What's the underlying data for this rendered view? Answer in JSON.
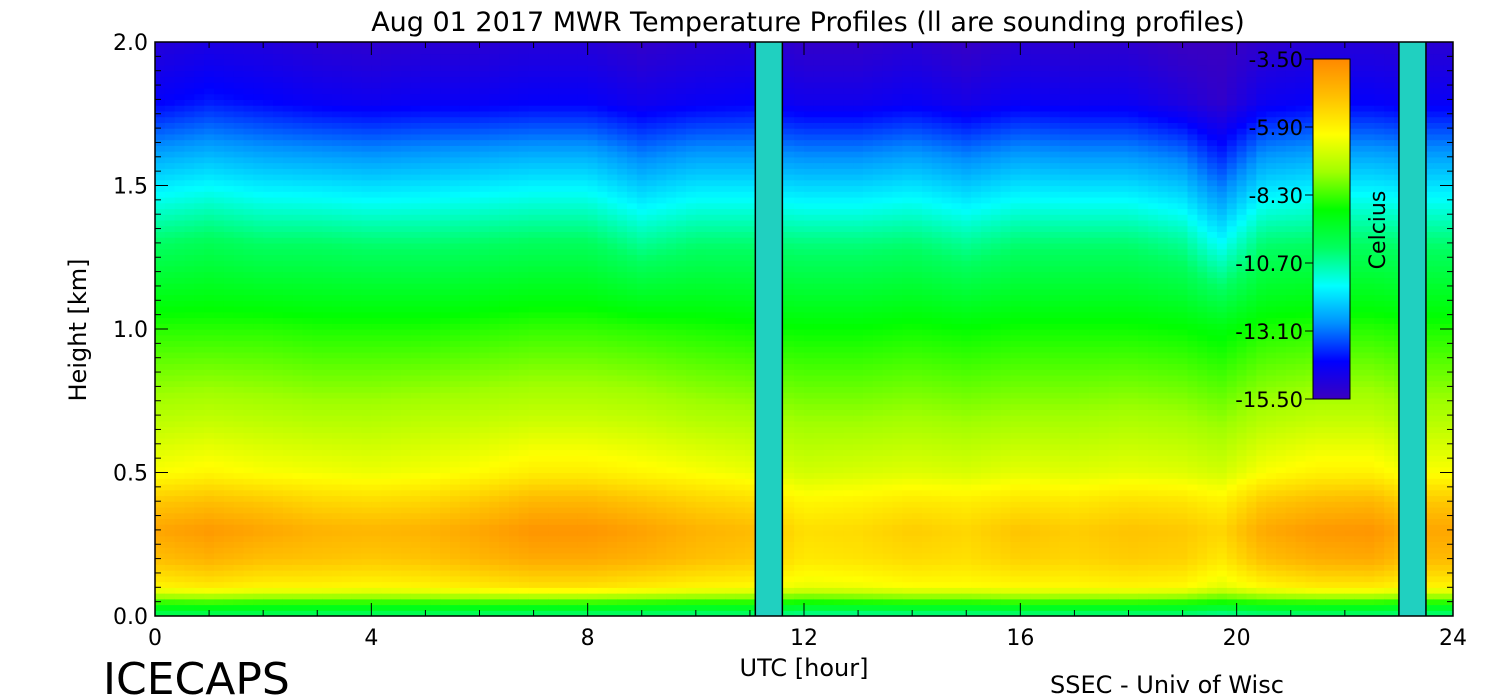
{
  "chart_data": {
    "type": "heatmap",
    "title": "Aug 01 2017 MWR Temperature Profiles (ll are sounding profiles)",
    "xlabel": "UTC [hour]",
    "ylabel": "Height [km]",
    "xlim": [
      0,
      24
    ],
    "ylim": [
      0,
      2.0
    ],
    "x_ticks": [
      0,
      4,
      8,
      12,
      16,
      20,
      24
    ],
    "y_ticks": [
      0.0,
      0.5,
      1.0,
      1.5,
      2.0
    ],
    "x_tick_labels": [
      "0",
      "4",
      "8",
      "12",
      "16",
      "20",
      "24"
    ],
    "y_tick_labels": [
      "0.0",
      "0.5",
      "1.0",
      "1.5",
      "2.0"
    ],
    "colorbar": {
      "label": "Celcius",
      "ticks": [
        -3.5,
        -5.9,
        -8.3,
        -10.7,
        -13.1,
        -15.5
      ],
      "tick_labels": [
        "-3.50",
        "-5.90",
        "-8.30",
        "-10.70",
        "-13.10",
        "-15.50"
      ],
      "range": [
        -15.5,
        -3.5
      ],
      "colors": [
        "#3a00c0",
        "#0000ff",
        "#0090ff",
        "#00ffff",
        "#00ff60",
        "#00ff00",
        "#a0ff00",
        "#ffff00",
        "#ffc000",
        "#ff8800"
      ]
    },
    "sounding_hours": [
      11.1,
      11.6,
      23.0,
      23.5
    ],
    "gap_color": "#20d0c0",
    "profile_hours": [
      0,
      1.0,
      2.0,
      3.0,
      4.0,
      5.0,
      6.0,
      7.0,
      8.0,
      9.0,
      10.0,
      11.0,
      12.0,
      13.0,
      14.0,
      15.0,
      16.0,
      17.0,
      18.0,
      19.0,
      19.7,
      20.5,
      21.5,
      22.5,
      23.0,
      24.0
    ],
    "heights_km": [
      0.0,
      0.05,
      0.1,
      0.2,
      0.3,
      0.4,
      0.5,
      0.7,
      1.0,
      1.3,
      1.6,
      1.8,
      2.0
    ],
    "temperature_c": [
      [
        -10.2,
        -8.4,
        -6.0,
        -4.8,
        -4.2,
        -5.0,
        -6.2,
        -7.2,
        -8.5,
        -10.2,
        -12.5,
        -14.3,
        -15.0
      ],
      [
        -10.2,
        -8.3,
        -5.8,
        -4.5,
        -3.9,
        -4.8,
        -6.0,
        -7.1,
        -8.5,
        -10.0,
        -12.3,
        -14.0,
        -14.8
      ],
      [
        -10.2,
        -8.4,
        -6.0,
        -4.8,
        -4.2,
        -5.0,
        -6.2,
        -7.2,
        -8.5,
        -10.2,
        -12.5,
        -14.2,
        -14.9
      ],
      [
        -10.3,
        -8.4,
        -6.0,
        -4.9,
        -4.5,
        -5.3,
        -6.3,
        -7.3,
        -8.6,
        -10.2,
        -12.6,
        -14.4,
        -15.1
      ],
      [
        -10.3,
        -8.4,
        -6.1,
        -5.0,
        -4.6,
        -5.4,
        -6.4,
        -7.3,
        -8.6,
        -10.3,
        -12.7,
        -14.5,
        -15.2
      ],
      [
        -10.3,
        -8.4,
        -6.0,
        -4.9,
        -4.5,
        -5.3,
        -6.3,
        -7.2,
        -8.6,
        -10.3,
        -12.6,
        -14.4,
        -15.1
      ],
      [
        -10.4,
        -8.3,
        -5.8,
        -4.6,
        -4.2,
        -5.0,
        -6.1,
        -7.1,
        -8.5,
        -10.2,
        -12.5,
        -14.4,
        -15.1
      ],
      [
        -10.5,
        -8.3,
        -5.6,
        -4.3,
        -3.8,
        -4.6,
        -5.8,
        -7.0,
        -8.4,
        -10.1,
        -12.4,
        -14.3,
        -15.0
      ],
      [
        -10.5,
        -8.3,
        -5.6,
        -4.3,
        -3.8,
        -4.6,
        -5.8,
        -7.0,
        -8.4,
        -10.1,
        -12.4,
        -14.3,
        -15.0
      ],
      [
        -10.5,
        -8.4,
        -5.8,
        -4.5,
        -4.1,
        -4.9,
        -6.0,
        -7.1,
        -8.5,
        -10.6,
        -12.9,
        -14.6,
        -15.3
      ],
      [
        -10.6,
        -8.5,
        -6.0,
        -4.8,
        -4.5,
        -5.2,
        -6.2,
        -7.3,
        -8.6,
        -10.3,
        -12.6,
        -14.4,
        -15.1
      ],
      [
        -10.5,
        -8.5,
        -6.1,
        -5.0,
        -4.7,
        -5.4,
        -6.4,
        -7.4,
        -8.7,
        -10.3,
        -12.6,
        -14.3,
        -15.0
      ],
      [
        -10.8,
        -8.7,
        -6.5,
        -5.7,
        -5.5,
        -6.0,
        -6.8,
        -7.6,
        -8.8,
        -10.4,
        -12.8,
        -14.6,
        -15.3
      ],
      [
        -10.8,
        -8.6,
        -6.4,
        -5.6,
        -5.4,
        -5.9,
        -6.7,
        -7.6,
        -8.8,
        -10.4,
        -12.8,
        -14.6,
        -15.3
      ],
      [
        -10.7,
        -8.5,
        -6.2,
        -5.4,
        -5.1,
        -5.7,
        -6.6,
        -7.5,
        -8.7,
        -10.3,
        -12.6,
        -14.4,
        -15.1
      ],
      [
        -10.7,
        -8.5,
        -6.2,
        -5.5,
        -5.3,
        -5.8,
        -6.7,
        -7.6,
        -8.8,
        -10.6,
        -12.9,
        -14.7,
        -15.4
      ],
      [
        -10.6,
        -8.4,
        -6.1,
        -5.2,
        -4.9,
        -5.6,
        -6.5,
        -7.5,
        -8.7,
        -10.3,
        -12.6,
        -14.4,
        -15.1
      ],
      [
        -10.6,
        -8.4,
        -6.1,
        -5.3,
        -5.1,
        -5.7,
        -6.6,
        -7.5,
        -8.7,
        -10.3,
        -12.7,
        -14.5,
        -15.2
      ],
      [
        -10.6,
        -8.4,
        -6.0,
        -5.1,
        -4.9,
        -5.5,
        -6.5,
        -7.4,
        -8.7,
        -10.3,
        -12.7,
        -14.5,
        -15.2
      ],
      [
        -10.6,
        -8.5,
        -6.1,
        -5.2,
        -5.0,
        -5.6,
        -6.6,
        -7.5,
        -8.8,
        -10.6,
        -13.0,
        -14.9,
        -15.5
      ],
      [
        -10.8,
        -8.7,
        -6.6,
        -5.7,
        -5.3,
        -5.9,
        -6.8,
        -7.7,
        -9.0,
        -11.5,
        -13.8,
        -15.3,
        -15.5
      ],
      [
        -10.6,
        -8.5,
        -6.1,
        -4.8,
        -4.3,
        -5.0,
        -6.2,
        -7.3,
        -8.6,
        -10.3,
        -12.7,
        -14.5,
        -15.2
      ],
      [
        -10.5,
        -8.4,
        -5.8,
        -4.4,
        -3.9,
        -4.7,
        -5.9,
        -7.1,
        -8.5,
        -10.2,
        -12.5,
        -14.3,
        -15.0
      ],
      [
        -10.5,
        -8.4,
        -5.8,
        -4.3,
        -3.8,
        -4.6,
        -5.9,
        -7.1,
        -8.5,
        -10.2,
        -12.5,
        -14.3,
        -15.0
      ],
      [
        -10.6,
        -8.5,
        -6.0,
        -4.7,
        -4.2,
        -5.0,
        -6.2,
        -7.3,
        -8.6,
        -10.3,
        -12.6,
        -14.4,
        -15.1
      ],
      [
        -10.6,
        -8.5,
        -6.0,
        -4.7,
        -4.2,
        -5.0,
        -6.2,
        -7.3,
        -8.6,
        -10.3,
        -12.6,
        -14.4,
        -15.1
      ]
    ]
  },
  "footer": {
    "left_text": "ICECAPS",
    "right_text": "SSEC - Univ of Wisc"
  }
}
